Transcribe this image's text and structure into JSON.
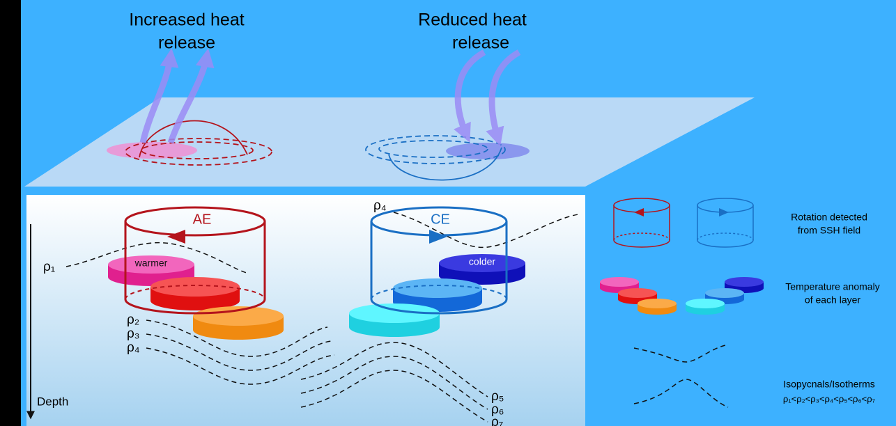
{
  "top_labels": {
    "increased": [
      "Increased heat",
      "release"
    ],
    "reduced": [
      "Reduced heat",
      "release"
    ]
  },
  "eddies": {
    "anticyclonic": {
      "label": "AE",
      "layer": "warmer"
    },
    "cyclonic": {
      "label": "CE",
      "layer": "colder"
    }
  },
  "depth_axis": "Depth",
  "isopycnals": {
    "left": [
      "ρ₁",
      "ρ₂",
      "ρ₃",
      "ρ₄"
    ],
    "ce_top": "ρ₄",
    "right": [
      "ρ₅",
      "ρ₆",
      "ρ₇"
    ]
  },
  "legend": {
    "rotation": [
      "Rotation detected",
      "from SSH field"
    ],
    "temperature": [
      "Temperature anomaly",
      "of each layer"
    ],
    "isopycnals": [
      "Isopycnals/Isotherms",
      "ρ₁<ρ₂<ρ₃<ρ₄<ρ₅<ρ₆<ρ₇"
    ]
  }
}
